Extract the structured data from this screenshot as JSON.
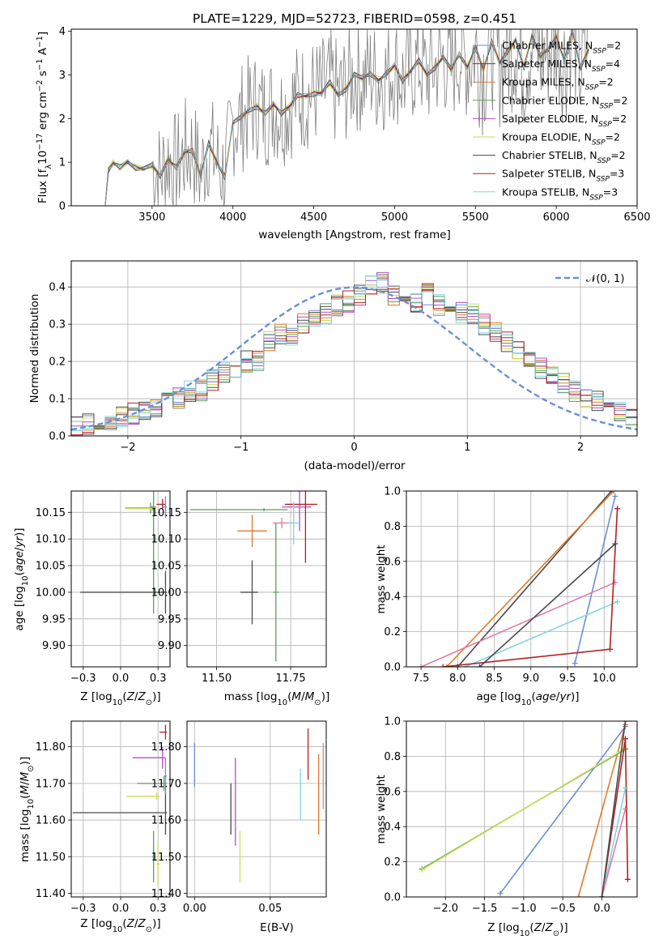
{
  "figure": {
    "title": "PLATE=1229, MJD=52723, FIBERID=0598, z=0.451"
  },
  "chart_data": [
    {
      "id": "spectrum",
      "type": "line",
      "xlabel": "wavelength [Angstrom, rest frame]",
      "ylabel": "Flux [f_λ 10^-17 erg cm^-2 s^-1 A^-1]",
      "xlim": [
        3000,
        6500
      ],
      "ylim": [
        0,
        4.05
      ],
      "xticks": [
        3500,
        4000,
        4500,
        5000,
        5500,
        6000,
        6500
      ],
      "yticks": [
        0,
        1,
        2,
        3,
        4
      ],
      "grid": false,
      "legend_position": "top-right",
      "data_series": {
        "name": "",
        "color": "#808080",
        "x": [
          3210,
          3230,
          3260,
          3300,
          3350,
          3400,
          3450,
          3500,
          3550,
          3600,
          3650,
          3700,
          3750,
          3800,
          3850,
          3900,
          3950,
          4000,
          4050,
          4100,
          4150,
          4200,
          4250,
          4300,
          4350,
          4400,
          4450,
          4500,
          4550,
          4600,
          4650,
          4700,
          4750,
          4800,
          4850,
          4900,
          4950,
          5000,
          5050,
          5100,
          5150,
          5200,
          5250,
          5300,
          5350,
          5400,
          5450,
          5500,
          5550,
          5600,
          5650,
          5700,
          5750,
          5800,
          5850,
          5900,
          5950,
          6000,
          6050,
          6100,
          6150,
          6200
        ],
        "y": [
          0.0,
          0.85,
          1.0,
          0.85,
          1.0,
          0.9,
          0.85,
          0.9,
          0.7,
          1.1,
          0.85,
          1.2,
          1.3,
          0.7,
          1.4,
          1.0,
          0.7,
          1.9,
          2.0,
          2.2,
          2.3,
          2.1,
          2.3,
          2.15,
          2.3,
          2.5,
          2.5,
          2.6,
          2.6,
          2.8,
          2.55,
          2.7,
          3.0,
          2.9,
          3.05,
          2.9,
          3.0,
          3.2,
          2.9,
          3.1,
          3.3,
          3.0,
          3.2,
          3.4,
          3.1,
          3.5,
          3.2,
          3.6,
          3.1,
          3.8,
          3.3,
          3.5,
          3.8,
          3.2,
          3.9,
          3.4,
          3.6,
          3.9,
          3.3,
          4.0,
          3.2,
          3.6
        ],
        "noise_from": 3500
      },
      "series": [
        {
          "name": "Chabrier MILES, N_SSP=2",
          "name_main": "Chabrier MILES, N",
          "name_sub": "SSP",
          "name_tail": "=2",
          "color": "#6a8fd6"
        },
        {
          "name": "Salpeter MILES, N_SSP=4",
          "name_main": "Salpeter MILES, N",
          "name_sub": "SSP",
          "name_tail": "=4",
          "color": "#4a4a4a"
        },
        {
          "name": "Kroupa MILES, N_SSP=2",
          "name_main": "Kroupa MILES, N",
          "name_sub": "SSP",
          "name_tail": "=2",
          "color": "#e07b2a"
        },
        {
          "name": "Chabrier ELODIE, N_SSP=2",
          "name_main": "Chabrier ELODIE, N",
          "name_sub": "SSP",
          "name_tail": "=2",
          "color": "#5c9e5c"
        },
        {
          "name": "Salpeter ELODIE, N_SSP=2",
          "name_main": "Salpeter ELODIE, N",
          "name_sub": "SSP",
          "name_tail": "=2",
          "color": "#b04fc6"
        },
        {
          "name": "Kroupa ELODIE, N_SSP=2",
          "name_main": "Kroupa ELODIE, N",
          "name_sub": "SSP",
          "name_tail": "=2",
          "color": "#c9de5a"
        },
        {
          "name": "Chabrier STELIB, N_SSP=2",
          "name_main": "Chabrier STELIB, N",
          "name_sub": "SSP",
          "name_tail": "=2",
          "color": "#4a4a4a"
        },
        {
          "name": "Salpeter STELIB, N_SSP=3",
          "name_main": "Salpeter STELIB, N",
          "name_sub": "SSP",
          "name_tail": "=3",
          "color": "#b22222"
        },
        {
          "name": "Kroupa STELIB, N_SSP=3",
          "name_main": "Kroupa STELIB, N",
          "name_sub": "SSP",
          "name_tail": "=3",
          "color": "#7fd6e0"
        }
      ]
    },
    {
      "id": "residuals",
      "type": "line",
      "xlabel": "(data-model)/error",
      "ylabel": "Normed distribution",
      "xlim": [
        -2.5,
        2.5
      ],
      "ylim": [
        0,
        0.47
      ],
      "xticks": [
        -2,
        -1,
        0,
        1,
        2
      ],
      "yticks": [
        0.0,
        0.1,
        0.2,
        0.3,
        0.4
      ],
      "grid": true,
      "legend": "𝒩(0, 1)",
      "legend_position": "top-right",
      "bin_edges_start": -2.5,
      "bin_width": 0.1,
      "hist_values": [
        0.03,
        0.03,
        0.04,
        0.04,
        0.05,
        0.06,
        0.07,
        0.07,
        0.09,
        0.1,
        0.12,
        0.12,
        0.15,
        0.17,
        0.17,
        0.2,
        0.2,
        0.25,
        0.27,
        0.27,
        0.3,
        0.32,
        0.33,
        0.35,
        0.36,
        0.38,
        0.4,
        0.41,
        0.38,
        0.37,
        0.36,
        0.38,
        0.35,
        0.34,
        0.33,
        0.33,
        0.3,
        0.28,
        0.25,
        0.23,
        0.2,
        0.18,
        0.16,
        0.14,
        0.12,
        0.1,
        0.09,
        0.07,
        0.06,
        0.05
      ]
    },
    {
      "id": "age_vs_Z",
      "type": "scatter",
      "xlabel": "Z [log10(Z/Z⊙)]",
      "ylabel": "age  [log10(age/yr)]",
      "xlim": [
        -0.33,
        0.33
      ],
      "ylim": [
        9.86,
        10.19
      ],
      "xticks": [
        -0.25,
        0.0,
        0.25
      ],
      "yticks": [
        9.9,
        9.95,
        10.0,
        10.05,
        10.1,
        10.15
      ],
      "grid": true,
      "points": [
        {
          "x": 0.2,
          "y": 10.158,
          "xerr_lo": 0.17,
          "xerr_hi": 0.02,
          "yerr": 0.01,
          "color": "#5c9e5c"
        },
        {
          "x": 0.21,
          "y": 10.157,
          "xerr_lo": 0.18,
          "xerr_hi": 0.03,
          "yerr": 0.005,
          "color": "#c9de5a"
        },
        {
          "x": 0.22,
          "y": 10.16,
          "xerr_lo": 0.02,
          "xerr_hi": 0.02,
          "yerr": 0.2,
          "color": "#5c9e5c"
        },
        {
          "x": 0.3,
          "y": 10.0,
          "xerr_lo": 0.57,
          "xerr_hi": 0.01,
          "yerr": 0.04,
          "color": "#4a4a4a"
        },
        {
          "x": 0.28,
          "y": 10.165,
          "xerr_lo": 0.04,
          "xerr_hi": 0.02,
          "yerr": 0.01,
          "color": "#b22222"
        },
        {
          "x": 0.3,
          "y": 10.16,
          "xerr_lo": 0.02,
          "xerr_hi": 0.01,
          "yerr": 0.02,
          "color": "#6a8fd6"
        }
      ]
    },
    {
      "id": "age_vs_mass",
      "type": "scatter",
      "xlabel": "mass [log10(M/M⊙)]",
      "ylabel": "",
      "xlim": [
        11.4,
        11.87
      ],
      "ylim": [
        9.86,
        10.19
      ],
      "xticks": [
        11.5,
        11.75
      ],
      "tick_labels": [
        "11.50",
        "11.75"
      ],
      "yticks": [
        9.9,
        9.95,
        10.0,
        10.05,
        10.1,
        10.15
      ],
      "grid": true,
      "points": [
        {
          "x": 11.66,
          "y": 10.155,
          "xerr_lo": 0.25,
          "xerr_hi": 0.08,
          "yerr": 0.003,
          "color": "#5c9e5c"
        },
        {
          "x": 11.62,
          "y": 10.115,
          "xerr_lo": 0.05,
          "xerr_hi": 0.05,
          "yerr": 0.03,
          "color": "#e07b2a"
        },
        {
          "x": 11.78,
          "y": 10.16,
          "xerr_lo": 0.06,
          "xerr_hi": 0.04,
          "yerr": 0.045,
          "color": "#b04fc6"
        },
        {
          "x": 11.72,
          "y": 10.13,
          "xerr_lo": 0.03,
          "xerr_hi": 0.04,
          "yerr": 0.01,
          "color": "#e07ba8"
        },
        {
          "x": 11.62,
          "y": 10.0,
          "xerr_lo": 0.04,
          "xerr_hi": 0.02,
          "yerr": 0.06,
          "color": "#4a4a4a"
        },
        {
          "x": 11.7,
          "y": 10.0,
          "xerr_lo": 0.01,
          "xerr_hi": 0.01,
          "yerr": 0.13,
          "color": "#5c9e5c"
        },
        {
          "x": 11.8,
          "y": 10.165,
          "xerr_lo": 0.07,
          "xerr_hi": 0.04,
          "yerr": 0.11,
          "color": "#b22222"
        },
        {
          "x": 11.76,
          "y": 10.13,
          "xerr_lo": 0.02,
          "xerr_hi": 0.02,
          "yerr": 0.04,
          "color": "#7fd6e0"
        }
      ]
    },
    {
      "id": "mass_weight_vs_age",
      "type": "line",
      "xlabel": "age  [log10(age/yr)]",
      "ylabel": "mass weight",
      "xlim": [
        7.3,
        10.45
      ],
      "ylim": [
        0,
        1.0
      ],
      "xticks": [
        7.5,
        8.0,
        8.5,
        9.0,
        9.5,
        10.0
      ],
      "yticks": [
        0.0,
        0.2,
        0.4,
        0.6,
        0.8,
        1.0
      ],
      "grid": true,
      "series": [
        {
          "name": "Chabrier MILES, N_SSP=2",
          "color": "#6a8fd6",
          "x": [
            9.6,
            10.15
          ],
          "y": [
            0.02,
            0.97
          ]
        },
        {
          "name": "Salpeter MILES, N_SSP=4",
          "color": "#4a4a4a",
          "x": [
            8.0,
            10.1
          ],
          "y": [
            0.0,
            1.0
          ]
        },
        {
          "name": "Kroupa MILES, N_SSP=2",
          "color": "#e07b2a",
          "x": [
            7.85,
            10.13
          ],
          "y": [
            0.0,
            1.0
          ]
        },
        {
          "name": "Salpeter ELODIE, N_SSP=2",
          "color": "#e07ba8",
          "x": [
            7.5,
            10.15
          ],
          "y": [
            0.0,
            0.48
          ]
        },
        {
          "name": "Kroupa STELIB, N_SSP=3",
          "color": "#7fd6e0",
          "x": [
            8.1,
            10.18
          ],
          "y": [
            0.0,
            0.37
          ]
        },
        {
          "name": "Salpeter STELIB, N_SSP=3",
          "color": "#b22222",
          "x": [
            7.8,
            10.08,
            10.18
          ],
          "y": [
            0.0,
            0.1,
            0.9
          ]
        },
        {
          "name": "Chabrier STELIB, N_SSP=2",
          "color": "#4a4a4a",
          "x": [
            8.3,
            10.15
          ],
          "y": [
            0.0,
            0.7
          ]
        }
      ]
    },
    {
      "id": "mass_vs_Z",
      "type": "scatter",
      "xlabel": "Z [log10(Z/Z⊙)]",
      "ylabel": "mass [log10(M/M⊙)]",
      "xlim": [
        -0.33,
        0.33
      ],
      "ylim": [
        11.39,
        11.87
      ],
      "xticks": [
        -0.25,
        0.0,
        0.25
      ],
      "yticks": [
        11.4,
        11.5,
        11.6,
        11.7,
        11.8
      ],
      "grid": true,
      "points": [
        {
          "x": 0.3,
          "y": 11.84,
          "xerr_lo": 0.04,
          "xerr_hi": 0.01,
          "yerr": 0.02,
          "color": "#b22222"
        },
        {
          "x": 0.28,
          "y": 11.77,
          "xerr_lo": 0.2,
          "xerr_hi": 0.02,
          "yerr": 0.03,
          "color": "#b04fc6"
        },
        {
          "x": 0.29,
          "y": 11.7,
          "xerr_lo": 0.18,
          "xerr_hi": 0.02,
          "yerr": 0.02,
          "color": "#5c9e5c"
        },
        {
          "x": 0.24,
          "y": 11.665,
          "xerr_lo": 0.2,
          "xerr_hi": 0.02,
          "yerr": 0.01,
          "color": "#c9de5a"
        },
        {
          "x": 0.3,
          "y": 11.62,
          "xerr_lo": 0.62,
          "xerr_hi": 0.01,
          "yerr": 0.06,
          "color": "#4a4a4a"
        },
        {
          "x": 0.22,
          "y": 11.5,
          "xerr_lo": 0.01,
          "xerr_hi": 0.01,
          "yerr": 0.07,
          "color": "#5c9e5c"
        },
        {
          "x": 0.25,
          "y": 11.48,
          "xerr_lo": 0.01,
          "xerr_hi": 0.01,
          "yerr": 0.06,
          "color": "#c9de5a"
        },
        {
          "x": 0.3,
          "y": 11.72,
          "xerr_lo": 0.01,
          "xerr_hi": 0.01,
          "yerr": 0.05,
          "color": "#6a8fd6"
        }
      ]
    },
    {
      "id": "mass_vs_ebv",
      "type": "scatter",
      "xlabel": "E(B-V)",
      "ylabel": "",
      "xlim": [
        -0.005,
        0.087
      ],
      "ylim": [
        11.39,
        11.87
      ],
      "xticks": [
        0.0,
        0.05
      ],
      "tick_labels": [
        "0.00",
        "0.05"
      ],
      "yticks": [
        11.4,
        11.5,
        11.6,
        11.7,
        11.8
      ],
      "grid": true,
      "points": [
        {
          "x": 0.0,
          "y": 11.75,
          "xerr_lo": 0.0,
          "xerr_hi": 0.0,
          "yerr": 0.06,
          "color": "#6a8fd6"
        },
        {
          "x": 0.024,
          "y": 11.63,
          "xerr_lo": 0.0,
          "xerr_hi": 0.0,
          "yerr": 0.07,
          "color": "#4a4a4a"
        },
        {
          "x": 0.027,
          "y": 11.65,
          "xerr_lo": 0.0,
          "xerr_hi": 0.0,
          "yerr": 0.12,
          "color": "#b04fc6"
        },
        {
          "x": 0.03,
          "y": 11.5,
          "xerr_lo": 0.0,
          "xerr_hi": 0.0,
          "yerr": 0.07,
          "color": "#c9de5a"
        },
        {
          "x": 0.07,
          "y": 11.67,
          "xerr_lo": 0.0,
          "xerr_hi": 0.0,
          "yerr": 0.07,
          "color": "#7fd6e0"
        },
        {
          "x": 0.075,
          "y": 11.78,
          "xerr_lo": 0.0,
          "xerr_hi": 0.0,
          "yerr": 0.07,
          "color": "#b22222"
        },
        {
          "x": 0.082,
          "y": 11.67,
          "xerr_lo": 0.0,
          "xerr_hi": 0.0,
          "yerr": 0.11,
          "color": "#e07b2a"
        },
        {
          "x": 0.085,
          "y": 11.72,
          "xerr_lo": 0.0,
          "xerr_hi": 0.0,
          "yerr": 0.09,
          "color": "#e07ba8"
        }
      ]
    },
    {
      "id": "mass_weight_vs_Z",
      "type": "line",
      "xlabel": "Z [log10(Z/Z⊙)]",
      "ylabel": "mass weight",
      "xlim": [
        -2.5,
        0.45
      ],
      "ylim": [
        0,
        1.0
      ],
      "xticks": [
        -2.0,
        -1.5,
        -1.0,
        -0.5,
        0.0
      ],
      "yticks": [
        0.0,
        0.2,
        0.4,
        0.6,
        0.8,
        1.0
      ],
      "grid": true,
      "series": [
        {
          "name": "Chabrier MILES, N_SSP=2",
          "color": "#6a8fd6",
          "x": [
            -1.3,
            0.3
          ],
          "y": [
            0.02,
            0.97
          ]
        },
        {
          "name": "Kroupa MILES, N_SSP=2",
          "color": "#e07b2a",
          "x": [
            -0.3,
            0.3
          ],
          "y": [
            0.0,
            0.98
          ]
        },
        {
          "name": "Chabrier ELODIE, N_SSP=2",
          "color": "#5c9e5c",
          "x": [
            -2.3,
            0.3
          ],
          "y": [
            0.16,
            0.84
          ]
        },
        {
          "name": "Kroupa ELODIE, N_SSP=2",
          "color": "#c9de5a",
          "x": [
            -2.3,
            0.3
          ],
          "y": [
            0.155,
            0.845
          ]
        },
        {
          "name": "Salpeter STELIB, N_SSP=3",
          "color": "#b22222",
          "x": [
            0.0,
            0.3,
            0.33
          ],
          "y": [
            0.0,
            0.9,
            0.1
          ]
        },
        {
          "name": "Kroupa STELIB, N_SSP=3",
          "color": "#7fd6e0",
          "x": [
            0.0,
            0.3
          ],
          "y": [
            0.0,
            0.62
          ]
        },
        {
          "name": "Salpeter ELODIE, N_SSP=2",
          "color": "#e07ba8",
          "x": [
            0.0,
            0.3
          ],
          "y": [
            0.0,
            0.5
          ]
        },
        {
          "name": "Salpeter MILES, N_SSP=4",
          "color": "#4a4a4a",
          "x": [
            0.0,
            0.3
          ],
          "y": [
            0.0,
            1.0
          ]
        }
      ]
    }
  ]
}
